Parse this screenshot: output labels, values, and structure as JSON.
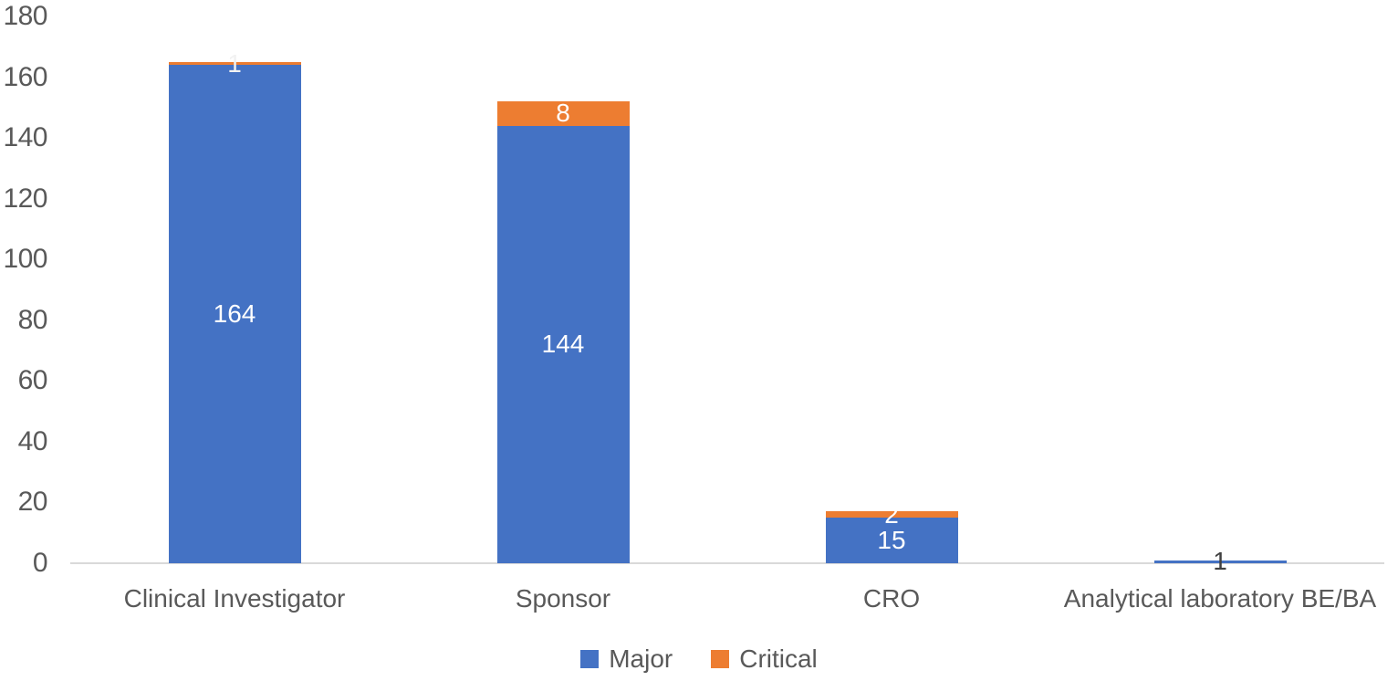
{
  "chart_data": {
    "type": "bar",
    "stacked": true,
    "orientation": "vertical",
    "title": "",
    "xlabel": "",
    "ylabel": "",
    "categories": [
      "Clinical Investigator",
      "Sponsor",
      "CRO",
      "Analytical laboratory BE/BA"
    ],
    "series": [
      {
        "name": "Major",
        "color": "#4472C4",
        "values": [
          164,
          144,
          15,
          1
        ],
        "data_labels": [
          "164",
          "144",
          "15",
          "1"
        ],
        "data_label_colors": [
          "#FFFFFF",
          "#FFFFFF",
          "#FFFFFF",
          "#404040"
        ]
      },
      {
        "name": "Critical",
        "color": "#ED7D31",
        "values": [
          1,
          8,
          2,
          0
        ],
        "data_labels": [
          "1",
          "8",
          "2",
          ""
        ],
        "data_label_colors": [
          "#F2F2F2",
          "#FFFFFF",
          "#FFFFFF",
          ""
        ]
      }
    ],
    "ylim": [
      0,
      180
    ],
    "yticks": [
      0,
      20,
      40,
      60,
      80,
      100,
      120,
      140,
      160,
      180
    ],
    "grid": false,
    "legend_position": "bottom",
    "legend_entries": [
      "Major",
      "Critical"
    ]
  },
  "colors": {
    "background": "#FFFFFF",
    "axis_line": "#D9D9D9",
    "tick_label": "#595959",
    "category_label": "#595959",
    "legend_label": "#595959",
    "series_major": "#4472C4",
    "series_critical": "#ED7D31"
  }
}
